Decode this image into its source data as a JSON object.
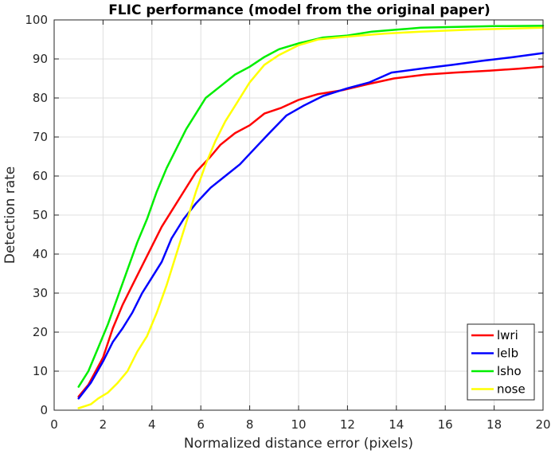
{
  "chart_data": {
    "type": "line",
    "title": "FLIC performance (model from the original paper)",
    "xlabel": "Normalized distance error (pixels)",
    "ylabel": "Detection rate",
    "xlim": [
      0,
      20
    ],
    "ylim": [
      0,
      100
    ],
    "xticks": [
      "0",
      "2",
      "4",
      "6",
      "8",
      "10",
      "12",
      "14",
      "16",
      "18",
      "20"
    ],
    "yticks": [
      "0",
      "10",
      "20",
      "30",
      "40",
      "50",
      "60",
      "70",
      "80",
      "90",
      "100"
    ],
    "grid": true,
    "legend_position": "bottom-right",
    "series": [
      {
        "name": "lwri",
        "color": "#ff0000",
        "x": [
          1.0,
          1.4,
          2.0,
          2.4,
          2.8,
          3.2,
          3.6,
          4.0,
          4.4,
          4.8,
          5.3,
          5.8,
          6.4,
          6.8,
          7.4,
          8.0,
          8.6,
          9.3,
          10.0,
          10.8,
          11.8,
          12.8,
          13.9,
          15.2,
          16.4,
          17.8,
          19.0,
          20.0
        ],
        "y": [
          3.5,
          6.5,
          13.5,
          21,
          27,
          32,
          37,
          42,
          47,
          51,
          56,
          61,
          65,
          68,
          71,
          73,
          76,
          77.5,
          79.5,
          81,
          82,
          83.5,
          85,
          86,
          86.5,
          87,
          87.5,
          88
        ]
      },
      {
        "name": "lelb",
        "color": "#0000ff",
        "x": [
          1.0,
          1.5,
          2.0,
          2.4,
          2.8,
          3.2,
          3.6,
          4.0,
          4.4,
          4.8,
          5.3,
          5.8,
          6.4,
          7.0,
          7.6,
          8.2,
          8.8,
          9.5,
          10.2,
          11.0,
          12.0,
          12.9,
          13.8,
          15.0,
          16.3,
          17.5,
          18.8,
          20.0
        ],
        "y": [
          3.0,
          7.0,
          12.5,
          17.5,
          21,
          25,
          30,
          34,
          38,
          44,
          49,
          53,
          57,
          60,
          63,
          67,
          71,
          75.5,
          78,
          80.5,
          82.5,
          84,
          86.5,
          87.5,
          88.5,
          89.5,
          90.5,
          91.5
        ]
      },
      {
        "name": "lsho",
        "color": "#00ee00",
        "x": [
          1.0,
          1.4,
          1.8,
          2.2,
          2.6,
          3.0,
          3.4,
          3.8,
          4.2,
          4.6,
          5.0,
          5.4,
          5.8,
          6.2,
          6.8,
          7.4,
          8.0,
          8.6,
          9.2,
          10.0,
          11.0,
          12.0,
          13.0,
          14.0,
          15.0,
          16.5,
          18.0,
          20.0
        ],
        "y": [
          6.0,
          10,
          16,
          22,
          29,
          36,
          43,
          49,
          56,
          62,
          67,
          72,
          76,
          80,
          83,
          86,
          88,
          90.5,
          92.5,
          94,
          95.5,
          96,
          97,
          97.5,
          98,
          98.2,
          98.4,
          98.5
        ]
      },
      {
        "name": "nose",
        "color": "#ffff00",
        "x": [
          1.0,
          1.5,
          1.8,
          2.2,
          2.6,
          3.0,
          3.4,
          3.8,
          4.2,
          4.6,
          5.0,
          5.4,
          5.8,
          6.2,
          6.6,
          7.0,
          7.5,
          8.0,
          8.6,
          9.2,
          10.0,
          10.8,
          11.6,
          12.5,
          13.5,
          15.0,
          17.0,
          20.0
        ],
        "y": [
          0.5,
          1.5,
          3.0,
          4.5,
          7,
          10,
          15,
          19,
          25,
          32,
          40,
          48,
          56,
          63,
          69,
          74,
          79,
          84,
          88.5,
          91,
          93.5,
          95,
          95.5,
          96,
          96.5,
          97,
          97.5,
          98
        ]
      }
    ]
  }
}
